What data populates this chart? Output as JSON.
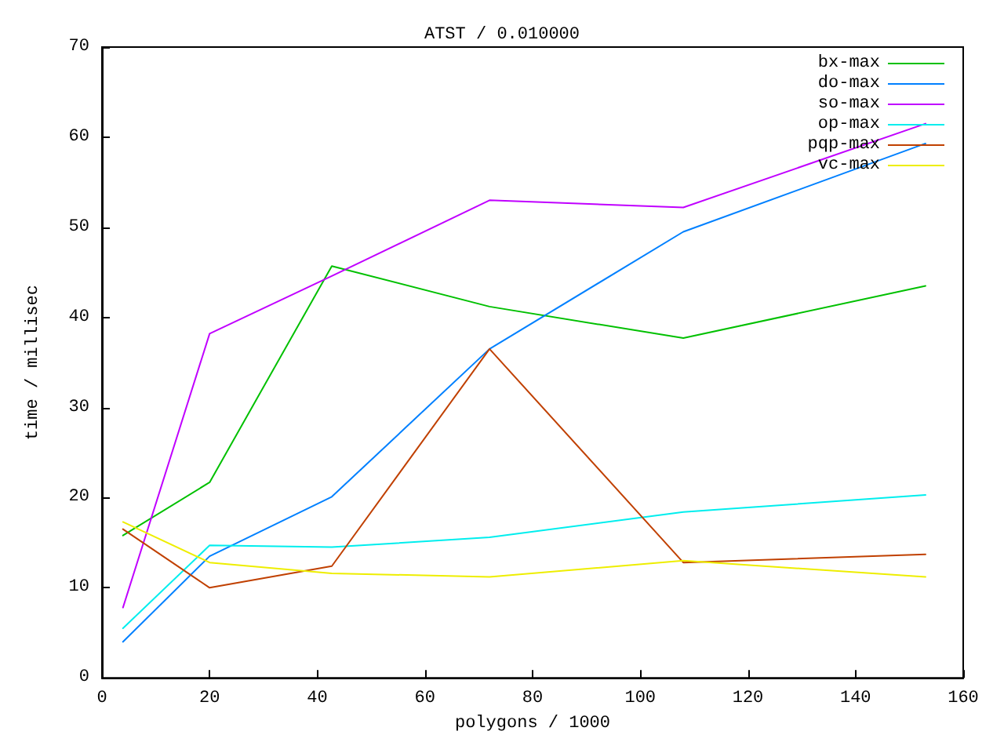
{
  "chart_data": {
    "type": "line",
    "title": "ATST / 0.010000",
    "xlabel": "polygons / 1000",
    "ylabel": "time / millisec",
    "x": [
      3.9,
      20,
      42.7,
      72,
      108,
      153
    ],
    "series": [
      {
        "name": "bx-max",
        "color": "#00c000",
        "values": [
          15.8,
          21.7,
          45.7,
          41.2,
          37.7,
          43.5
        ]
      },
      {
        "name": "do-max",
        "color": "#0080ff",
        "values": [
          4,
          13.5,
          20.1,
          36.5,
          49.5,
          59.3
        ]
      },
      {
        "name": "so-max",
        "color": "#c000ff",
        "values": [
          7.8,
          38.2,
          44.6,
          53,
          52.2,
          61.5
        ]
      },
      {
        "name": "op-max",
        "color": "#00eeee",
        "values": [
          5.5,
          14.7,
          14.5,
          15.6,
          18.4,
          20.3
        ]
      },
      {
        "name": "pqp-max",
        "color": "#c04000",
        "values": [
          16.5,
          10,
          12.4,
          36.5,
          12.8,
          13.7
        ]
      },
      {
        "name": "vc-max",
        "color": "#eeee00",
        "values": [
          17.3,
          12.8,
          11.6,
          11.2,
          13,
          11.2
        ]
      }
    ],
    "xlim": [
      0,
      160
    ],
    "xticks": [
      0,
      20,
      40,
      60,
      80,
      100,
      120,
      140,
      160
    ],
    "ylim": [
      0,
      70
    ],
    "yticks": [
      0,
      10,
      20,
      30,
      40,
      50,
      60,
      70
    ],
    "grid": false,
    "legend": "top right",
    "marker": "none",
    "line_style": "solid"
  }
}
